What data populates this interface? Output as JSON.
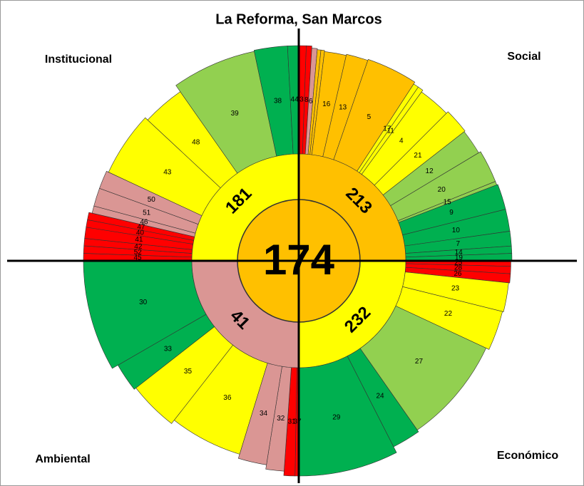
{
  "chart_data": {
    "type": "sunburst",
    "title": "La Reforma, San Marcos",
    "rlim": [
      0,
      100
    ],
    "center": {
      "value": 174,
      "color": "#ffc000"
    },
    "sectors": [
      {
        "name": "Social",
        "value": 213,
        "color": "#ffc000",
        "segments": [
          {
            "label": "3",
            "color": "#ff0000",
            "width": 2,
            "value": 100
          },
          {
            "label": "8",
            "color": "#ff0000",
            "width": 1.5,
            "value": 100
          },
          {
            "label": "6",
            "color": "#da9694",
            "width": 1.5,
            "value": 98
          },
          {
            "label": null,
            "color": "#ffc000",
            "width": 1,
            "value": 97
          },
          {
            "label": null,
            "color": "#ffc000",
            "width": 1,
            "value": 97
          },
          {
            "label": "16",
            "color": "#ffc000",
            "width": 6,
            "value": 96
          },
          {
            "label": "13",
            "color": "#ffc000",
            "width": 6,
            "value": 97
          },
          {
            "label": "5",
            "color": "#ffc000",
            "width": 14,
            "value": 98
          },
          {
            "label": "17",
            "color": "#ffff00",
            "width": 1.5,
            "value": 96
          },
          {
            "label": "11",
            "color": "#ffff00",
            "width": 1.5,
            "value": 96
          },
          {
            "label": "4",
            "color": "#ffff00",
            "width": 9,
            "value": 94
          },
          {
            "label": "21",
            "color": "#ffff00",
            "width": 7,
            "value": 96
          },
          {
            "label": "12",
            "color": "#92d050",
            "width": 7,
            "value": 95
          },
          {
            "label": "20",
            "color": "#92d050",
            "width": 9,
            "value": 97
          },
          {
            "label": "15",
            "color": "#92d050",
            "width": 1,
            "value": 97
          },
          {
            "label": "9",
            "color": "#00b050",
            "width": 7,
            "value": 98
          },
          {
            "label": "10",
            "color": "#00b050",
            "width": 6,
            "value": 98
          },
          {
            "label": "7",
            "color": "#00b050",
            "width": 4,
            "value": 98
          },
          {
            "label": "14",
            "color": "#00b050",
            "width": 2,
            "value": 98
          },
          {
            "label": "19",
            "color": "#00b050",
            "width": 2,
            "value": 98
          }
        ]
      },
      {
        "name": "Económico",
        "value": 232,
        "color": "#ffff00",
        "segments": [
          {
            "label": "25",
            "color": "#ff0000",
            "width": 1.5,
            "value": 97
          },
          {
            "label": "28",
            "color": "#ff0000",
            "width": 2,
            "value": 97
          },
          {
            "label": "26",
            "color": "#ff0000",
            "width": 2.5,
            "value": 97
          },
          {
            "label": "23",
            "color": "#ffff00",
            "width": 8,
            "value": 96
          },
          {
            "label": "22",
            "color": "#ffff00",
            "width": 11,
            "value": 95
          },
          {
            "label": "27",
            "color": "#92d050",
            "width": 30,
            "value": 92
          },
          {
            "label": "24",
            "color": "#00b050",
            "width": 8,
            "value": 94
          },
          {
            "label": "29",
            "color": "#00b050",
            "width": 27,
            "value": 100
          }
        ]
      },
      {
        "name": "Ambiental",
        "value": 41,
        "color": "#da9694",
        "segments": [
          {
            "label": "37",
            "color": "#ff0000",
            "width": 1,
            "value": 100
          },
          {
            "label": "31",
            "color": "#ff0000",
            "width": 3,
            "value": 100
          },
          {
            "label": "32",
            "color": "#da9694",
            "width": 5,
            "value": 96
          },
          {
            "label": "34",
            "color": "#da9694",
            "width": 8,
            "value": 92
          },
          {
            "label": "36",
            "color": "#ffff00",
            "width": 21,
            "value": 88
          },
          {
            "label": "35",
            "color": "#ffff00",
            "width": 14,
            "value": 92
          },
          {
            "label": "33",
            "color": "#00b050",
            "width": 8,
            "value": 94
          },
          {
            "label": "30",
            "color": "#00b050",
            "width": 30,
            "value": 100
          }
        ]
      },
      {
        "name": "Institucional",
        "value": 181,
        "color": "#ffff00",
        "segments": [
          {
            "label": "45",
            "color": "#ff0000",
            "width": 2,
            "value": 100
          },
          {
            "label": "52",
            "color": "#ff0000",
            "width": 2,
            "value": 100
          },
          {
            "label": "42",
            "color": "#ff0000",
            "width": 2,
            "value": 100
          },
          {
            "label": "41",
            "color": "#ff0000",
            "width": 3,
            "value": 100
          },
          {
            "label": "40",
            "color": "#ff0000",
            "width": 2,
            "value": 100
          },
          {
            "label": "47",
            "color": "#ff0000",
            "width": 2,
            "value": 100
          },
          {
            "label": "46",
            "color": "#da9694",
            "width": 2,
            "value": 97
          },
          {
            "label": "51",
            "color": "#da9694",
            "width": 5,
            "value": 97
          },
          {
            "label": "50",
            "color": "#da9694",
            "width": 5,
            "value": 97
          },
          {
            "label": "43",
            "color": "#ffff00",
            "width": 18,
            "value": 95
          },
          {
            "label": "48",
            "color": "#ffff00",
            "width": 12,
            "value": 92
          },
          {
            "label": "39",
            "color": "#92d050",
            "width": 23,
            "value": 99
          },
          {
            "label": "38",
            "color": "#00b050",
            "width": 9,
            "value": 100
          },
          {
            "label": "44",
            "color": "#00b050",
            "width": 3,
            "value": 100
          }
        ]
      }
    ]
  }
}
